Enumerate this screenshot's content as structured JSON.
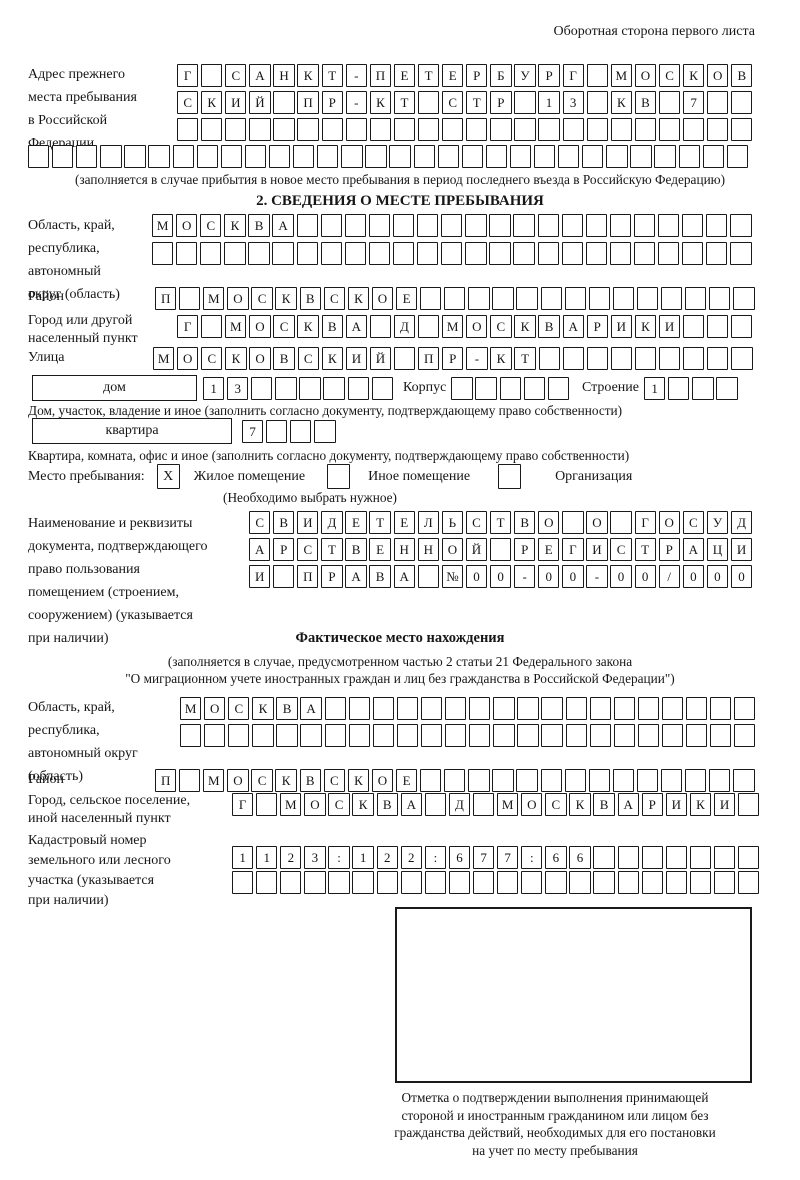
{
  "page": {
    "side_note": "Оборотная сторона первого листа"
  },
  "prev_address": {
    "label_lines": [
      "Адрес прежнего",
      "места пребывания",
      "в Российской",
      "Федерации"
    ],
    "rows": [
      {
        "text": "Г САНКТ-ПЕТЕРБУРГ МОСКОВ",
        "len": 24
      },
      {
        "text": "СКИЙ ПР-КТ СТР 13 КВ 7",
        "len": 24
      },
      {
        "text": "",
        "len": 24
      }
    ],
    "full_row": {
      "text": "",
      "len": 30
    },
    "note": "(заполняется в случае прибытия в новое место пребывания в период последнего въезда в Российскую Федерацию)"
  },
  "section2": {
    "title": "2. СВЕДЕНИЯ О МЕСТЕ ПРЕБЫВАНИЯ",
    "region": {
      "label_lines": [
        "Область, край,",
        "республика,",
        "автономный",
        "округ (область)"
      ],
      "rows": [
        {
          "text": "МОСКВА",
          "len": 25
        },
        {
          "text": "",
          "len": 25
        }
      ]
    },
    "district": {
      "label": "Район",
      "row": {
        "text": "П МОСКВСКОЕ",
        "len": 25
      }
    },
    "city": {
      "label_lines": [
        "Город или другой",
        "населенный пункт"
      ],
      "row": {
        "text": "Г МОСКВА Д МОСКВАРИКИ",
        "len": 24
      }
    },
    "street": {
      "label": "Улица",
      "row": {
        "text": "МОСКОВСКИЙ ПР-КТ",
        "len": 25
      }
    },
    "house": {
      "box_label": "дом",
      "cells": {
        "text": "13",
        "len": 8
      },
      "korpus_label": "Корпус",
      "korpus_cells": {
        "text": "",
        "len": 5
      },
      "stroenie_label": "Строение",
      "stroenie_cells": {
        "text": "1",
        "len": 4
      },
      "note": "Дом, участок, владение и иное (заполнить согласно документу, подтверждающему право собственности)"
    },
    "apartment": {
      "box_label": "квартира",
      "cells": {
        "text": "7",
        "len": 4
      },
      "note": "Квартира, комната, офис и иное (заполнить согласно документу, подтверждающему право собственности)"
    },
    "stay": {
      "label": "Место пребывания:",
      "mark": "X",
      "options": [
        "Жилое помещение",
        "Иное помещение",
        "Организация"
      ],
      "note": "(Необходимо выбрать нужное)"
    },
    "doc": {
      "label_lines": [
        "Наименование и реквизиты",
        "документа, подтверждающего",
        "право пользования",
        "помещением (строением,",
        "сооружением) (указывается",
        "при наличии)"
      ],
      "rows": [
        {
          "text": "СВИДЕТЕЛЬСТВО О ГОСУД",
          "len": 21
        },
        {
          "text": "АРСТВЕННОЙ РЕГИСТРАЦИ",
          "len": 21
        },
        {
          "text": "И ПРАВА №00-00-00/000",
          "len": 21
        }
      ]
    }
  },
  "actual": {
    "title": "Фактическое место нахождения",
    "note_lines": [
      "(заполняется в случае, предусмотренном частью 2 статьи 21 Федерального закона",
      "\"О миграционном учете иностранных граждан и лиц без гражданства в Российской Федерации\")"
    ],
    "region": {
      "label_lines": [
        "Область, край,",
        "республика,",
        "автономный округ",
        "(область)"
      ],
      "rows": [
        {
          "text": "МОСКВА",
          "len": 24
        },
        {
          "text": "",
          "len": 24
        }
      ]
    },
    "district": {
      "label": "Район",
      "row": {
        "text": "П МОСКВСКОЕ",
        "len": 25
      }
    },
    "city": {
      "label_lines": [
        "Город, сельское поселение,",
        "иной населенный пункт"
      ],
      "row": {
        "text": "Г МОСКВА Д МОСКВАРИКИ",
        "len": 22
      }
    },
    "cadastre": {
      "label_lines": [
        "Кадастровый номер",
        "земельного или лесного",
        "участка (указывается",
        "при наличии)"
      ],
      "rows": [
        {
          "text": "1123:122:677:66",
          "len": 22
        },
        {
          "text": "",
          "len": 22
        }
      ]
    },
    "stamp_caption_lines": [
      "Отметка о подтверждении выполнения принимающей",
      "стороной и иностранным гражданином или лицом без",
      "гражданства действий, необходимых для его постановки",
      "на учет по месту пребывания"
    ]
  }
}
